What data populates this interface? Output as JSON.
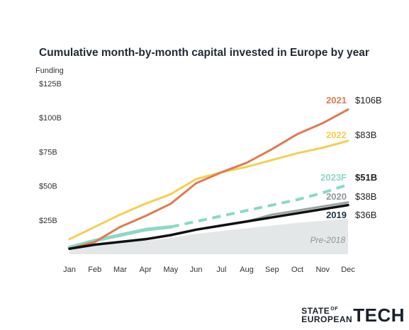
{
  "chart_data": {
    "type": "line",
    "title": "Cumulative month-by-month capital invested in Europe by year",
    "ylabel": "Funding",
    "xlabel": "",
    "categories": [
      "Jan",
      "Feb",
      "Mar",
      "Apr",
      "May",
      "Jun",
      "Jul",
      "Aug",
      "Sep",
      "Oct",
      "Nov",
      "Dec"
    ],
    "ylim": [
      0,
      130
    ],
    "yticks": [
      {
        "value": 25,
        "label": "$25B"
      },
      {
        "value": 50,
        "label": "$50B"
      },
      {
        "value": 75,
        "label": "$75B"
      },
      {
        "value": 100,
        "label": "$100B"
      },
      {
        "value": 125,
        "label": "$125B"
      }
    ],
    "area": {
      "name": "Pre-2018",
      "color": "#e3e7e7",
      "values": [
        3,
        6,
        8,
        10,
        12,
        15,
        17,
        19,
        21,
        23,
        24.5,
        26
      ]
    },
    "series": [
      {
        "name": "2021",
        "end_label": "$106B",
        "color": "#e07a4f",
        "dashed": false,
        "values": [
          4,
          9,
          20,
          28,
          37,
          52,
          60,
          67,
          77,
          88,
          96,
          106
        ]
      },
      {
        "name": "2022",
        "end_label": "$83B",
        "color": "#f5cf4e",
        "dashed": false,
        "values": [
          11,
          20,
          29,
          37,
          44,
          55,
          60,
          64,
          69,
          74,
          78,
          83
        ]
      },
      {
        "name": "2023F",
        "end_label": "$51B",
        "color": "#8ad9c4",
        "dashed": true,
        "dash_from_index": 4,
        "values": [
          5,
          10,
          14,
          18,
          20,
          24,
          28,
          32,
          36,
          40,
          45,
          51
        ]
      },
      {
        "name": "2020",
        "end_label": "$38B",
        "color": "#9aa3a5",
        "dashed": false,
        "values": [
          4,
          7,
          9,
          11,
          14,
          18,
          21,
          24,
          29,
          32,
          35,
          38
        ]
      },
      {
        "name": "2019",
        "end_label": "$36B",
        "color": "#111111",
        "dashed": false,
        "values": [
          4,
          7,
          9,
          11,
          14,
          18,
          21,
          24,
          27,
          30,
          33,
          36
        ]
      }
    ],
    "end_labels_bold": [
      "2023F"
    ]
  },
  "logo": {
    "top": "STATE",
    "of": "OF",
    "bottom": "EUROPEAN",
    "tech": "TECH"
  }
}
